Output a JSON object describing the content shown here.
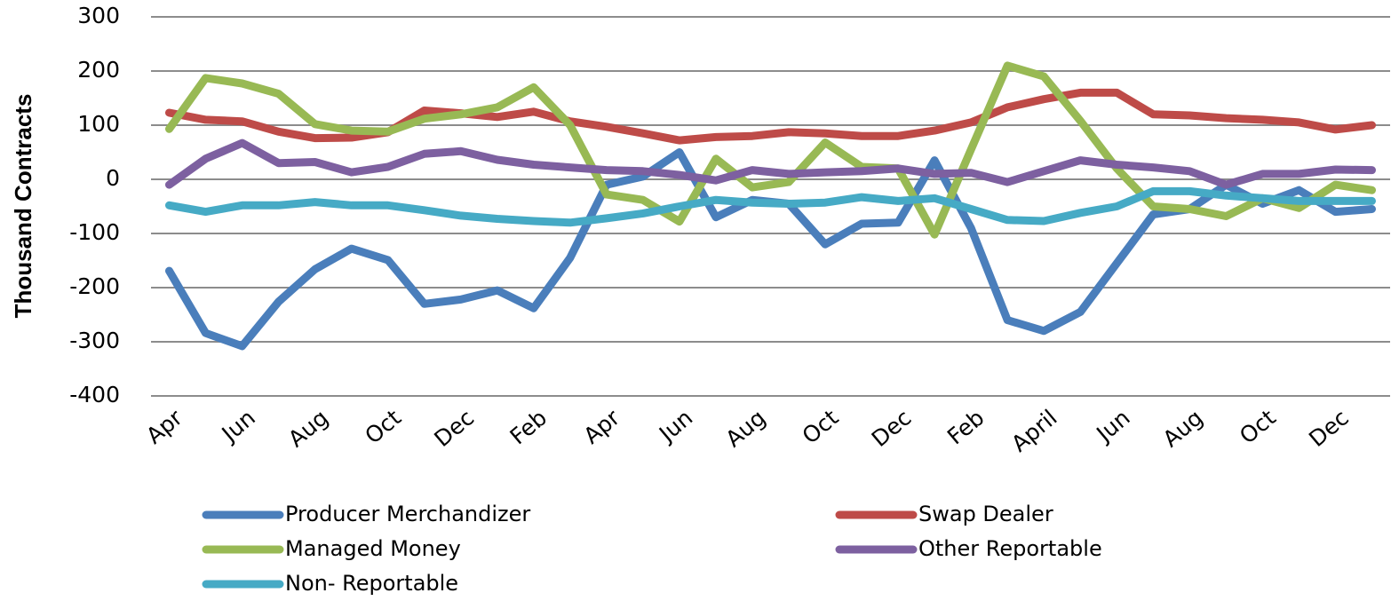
{
  "chart_data": {
    "type": "line",
    "y_label": "Thousand Contracts",
    "categories": [
      "Apr",
      null,
      "Jun",
      null,
      "Aug",
      null,
      "Oct",
      null,
      "Dec",
      null,
      "Feb",
      null,
      "Apr",
      null,
      "Jun",
      null,
      "Aug",
      null,
      "Oct",
      null,
      "Dec",
      null,
      "Feb",
      null,
      "April",
      null,
      "Jun",
      null,
      "Aug",
      null,
      "Oct",
      null,
      "Dec",
      null
    ],
    "series": [
      {
        "name": "Producer Merchandizer",
        "color": "#4a7ebb",
        "values": [
          -169,
          -284,
          -308,
          -226,
          -166,
          -128,
          -149,
          -230,
          -222,
          -205,
          -238,
          -145,
          -10,
          5,
          50,
          -70,
          -38,
          -45,
          -120,
          -82,
          -80,
          35,
          -90,
          -260,
          -280,
          -245,
          -155,
          -65,
          -55,
          -10,
          -45,
          -20,
          -60,
          -55
        ]
      },
      {
        "name": "Swap Dealer",
        "color": "#be4b48",
        "values": [
          123,
          110,
          107,
          88,
          76,
          77,
          87,
          127,
          122,
          115,
          125,
          107,
          97,
          85,
          72,
          78,
          80,
          87,
          85,
          80,
          80,
          90,
          105,
          133,
          148,
          160,
          160,
          120,
          118,
          113,
          110,
          105,
          92,
          100
        ]
      },
      {
        "name": "Managed Money",
        "color": "#98b954",
        "values": [
          93,
          187,
          177,
          158,
          102,
          90,
          88,
          112,
          120,
          133,
          170,
          100,
          -28,
          -38,
          -78,
          38,
          -15,
          -5,
          68,
          23,
          20,
          -102,
          55,
          210,
          190,
          108,
          20,
          -50,
          -55,
          -68,
          -35,
          -53,
          -10,
          -20
        ]
      },
      {
        "name": "Other Reportable",
        "color": "#7d60a0",
        "values": [
          -10,
          38,
          67,
          30,
          32,
          13,
          23,
          47,
          52,
          36,
          27,
          22,
          17,
          15,
          8,
          -2,
          17,
          10,
          13,
          15,
          20,
          10,
          12,
          -5,
          15,
          35,
          27,
          22,
          15,
          -10,
          10,
          10,
          18,
          17
        ]
      },
      {
        "name": "Non- Reportable",
        "color": "#46aac5",
        "values": [
          -48,
          -60,
          -48,
          -48,
          -42,
          -48,
          -48,
          -57,
          -67,
          -73,
          -77,
          -80,
          -72,
          -63,
          -50,
          -38,
          -43,
          -45,
          -43,
          -33,
          -40,
          -35,
          -55,
          -75,
          -77,
          -62,
          -50,
          -22,
          -22,
          -30,
          -35,
          -40,
          -40,
          -40
        ]
      }
    ],
    "ylim": [
      -400,
      300
    ],
    "yticks": [
      -400,
      -300,
      -200,
      -100,
      0,
      100,
      200,
      300
    ],
    "grid": true,
    "legend": "bottom"
  }
}
